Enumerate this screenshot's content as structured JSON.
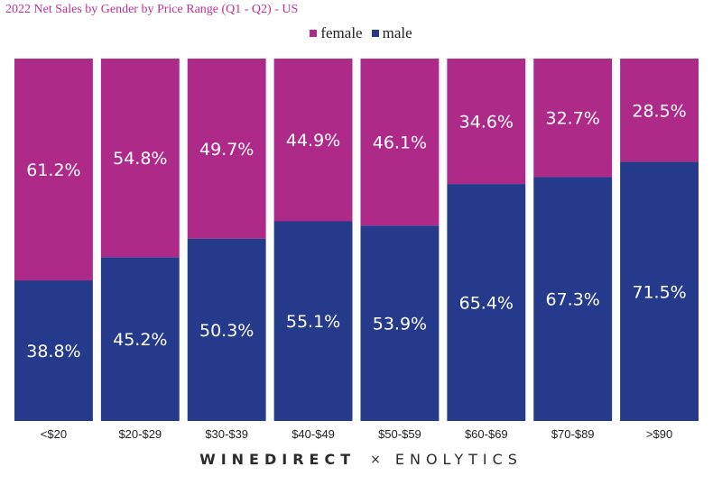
{
  "chart_data": {
    "type": "bar",
    "stacked": true,
    "title": "2022 Net Sales by Gender by Price Range (Q1 - Q2) - US",
    "categories": [
      "<$20",
      "$20-$29",
      "$30-$39",
      "$40-$49",
      "$50-$59",
      "$60-$69",
      "$70-$89",
      ">$90"
    ],
    "series": [
      {
        "name": "male",
        "color": "#263a8c",
        "values": [
          38.8,
          45.2,
          50.3,
          55.1,
          53.9,
          65.4,
          67.3,
          71.5
        ]
      },
      {
        "name": "female",
        "color": "#ad2a88",
        "values": [
          61.2,
          54.8,
          49.7,
          44.9,
          46.1,
          34.6,
          32.7,
          28.5
        ]
      }
    ],
    "legend": [
      {
        "name": "female",
        "color": "#ad2a88"
      },
      {
        "name": "male",
        "color": "#263a8c"
      }
    ],
    "value_suffix": "%",
    "ylim": [
      0,
      100
    ],
    "xlabel": "",
    "ylabel": ""
  },
  "footer": {
    "brand_left": "WINEDIRECT",
    "separator": "×",
    "brand_right": "ENOLYTICS"
  }
}
